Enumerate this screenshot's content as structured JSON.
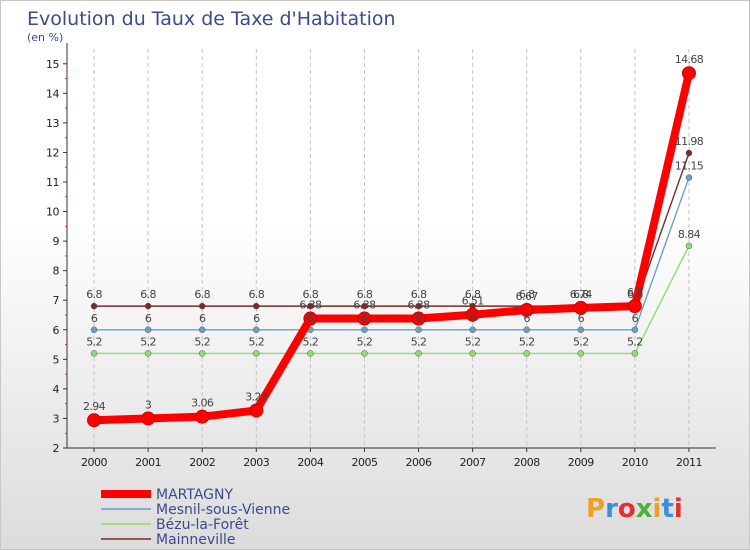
{
  "chart_data": {
    "type": "line",
    "title": "Evolution du Taux de Taxe d'Habitation",
    "subtitle": "(en %)",
    "x": [
      "2000",
      "2001",
      "2002",
      "2003",
      "2004",
      "2005",
      "2006",
      "2007",
      "2008",
      "2009",
      "2010",
      "2011"
    ],
    "yticks": [
      "2",
      "3",
      "4",
      "5",
      "6",
      "7",
      "8",
      "9",
      "10",
      "11",
      "12",
      "13",
      "14",
      "15"
    ],
    "ylim": [
      2,
      15.5
    ],
    "grid": "vertical-dashed",
    "legend_position": "bottom-left",
    "series": [
      {
        "name": "Mainneville",
        "color": "#7a2a2a",
        "values": [
          6.8,
          6.8,
          6.8,
          6.8,
          6.8,
          6.8,
          6.8,
          6.8,
          6.8,
          6.8,
          6.8,
          11.98
        ],
        "labels": [
          "6.8",
          "6.8",
          "6.8",
          "6.8",
          "6.8",
          "6.8",
          "6.8",
          "6.8",
          "6.8",
          "6.8",
          "6.8",
          "11.98"
        ]
      },
      {
        "name": "Mesnil-sous-Vienne",
        "color": "#6aa0c8",
        "values": [
          6,
          6,
          6,
          6,
          6,
          6,
          6,
          6,
          6,
          6,
          6,
          11.15
        ],
        "labels": [
          "6",
          "6",
          "6",
          "6",
          "6",
          "6",
          "6",
          "6",
          "6",
          "6",
          "6",
          "11.15"
        ]
      },
      {
        "name": "Bézu-la-Forêt",
        "color": "#90dc70",
        "values": [
          5.2,
          5.2,
          5.2,
          5.2,
          5.2,
          5.2,
          5.2,
          5.2,
          5.2,
          5.2,
          5.2,
          8.84
        ],
        "labels": [
          "5.2",
          "5.2",
          "5.2",
          "5.2",
          "5.2",
          "5.2",
          "5.2",
          "5.2",
          "5.2",
          "5.2",
          "5.2",
          "8.84"
        ]
      },
      {
        "name": "MARTAGNY",
        "color": "#ff0000",
        "values": [
          2.94,
          3,
          3.06,
          3.27,
          6.38,
          6.38,
          6.38,
          6.51,
          6.67,
          6.74,
          6.8,
          14.68
        ],
        "labels": [
          "2.94",
          "3",
          "3.06",
          "3.27",
          "6.38",
          "6.38",
          "6.38",
          "6.51",
          "6.67",
          "6.74",
          "6.8",
          "14.68"
        ]
      }
    ],
    "legend": [
      "MARTAGNY",
      "Mesnil-sous-Vienne",
      "Bézu-la-Forêt",
      "Mainneville"
    ]
  },
  "logo": {
    "letters": [
      "P",
      "r",
      "o",
      "x",
      "i",
      "t",
      "i"
    ],
    "colors": [
      "#f0a020",
      "#3a8ee0",
      "#e03030",
      "#50b030",
      "#f0a020",
      "#3a8ee0",
      "#e03030"
    ]
  }
}
